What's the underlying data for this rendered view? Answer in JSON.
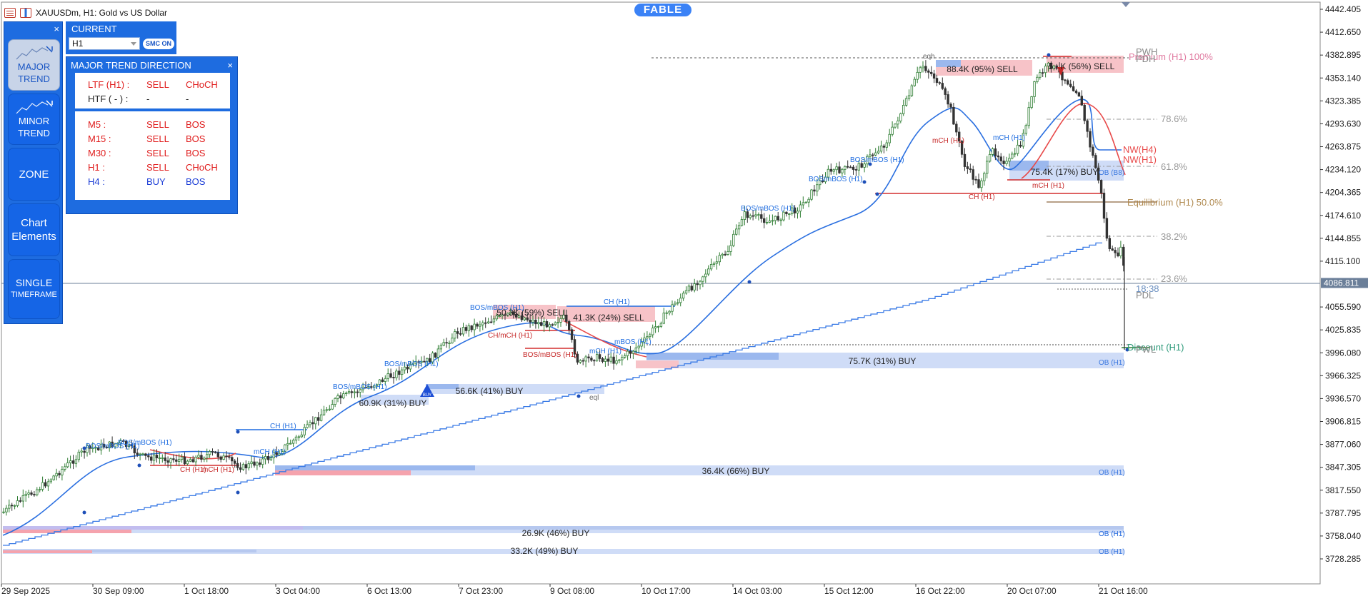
{
  "symbol": {
    "title": "XAUUSDm, H1:  Gold vs US Dollar"
  },
  "brand": {
    "name": "FABLE"
  },
  "left_panel": {
    "close": "×",
    "buttons": [
      {
        "line1": "MAJOR",
        "line2": "TREND",
        "active": true
      },
      {
        "line1": "MINOR",
        "line2": "TREND",
        "active": false
      },
      {
        "line1": "ZONE",
        "line2": "",
        "active": false
      },
      {
        "line1": "Chart",
        "line2": "Elements",
        "active": false
      },
      {
        "line1": "SINGLE",
        "line2": "TIMEFRAME",
        "active": false
      }
    ]
  },
  "current": {
    "label": "CURRENT",
    "timeframe": "H1",
    "smc_button": "SMC ON"
  },
  "trend_panel": {
    "title": "MAJOR TREND DIRECTION",
    "close": "×",
    "top_rows": [
      {
        "tf": "LTF (H1) :",
        "dir": "SELL",
        "type": "CHoCH",
        "color": "red"
      },
      {
        "tf": "HTF ( - ) :",
        "dir": "-",
        "type": "-",
        "color": "dark"
      }
    ],
    "rows": [
      {
        "tf": "M5 :",
        "dir": "SELL",
        "type": "BOS",
        "color": "red"
      },
      {
        "tf": "M15 :",
        "dir": "SELL",
        "type": "BOS",
        "color": "red"
      },
      {
        "tf": "M30 :",
        "dir": "SELL",
        "type": "BOS",
        "color": "red"
      },
      {
        "tf": "H1 :",
        "dir": "SELL",
        "type": "CHoCH",
        "color": "red"
      },
      {
        "tf": "H4 :",
        "dir": "BUY",
        "type": "BOS",
        "color": "blue"
      }
    ]
  },
  "price_axis": {
    "labels": [
      "4442.405",
      "4412.650",
      "4382.895",
      "4353.140",
      "4323.385",
      "4293.630",
      "4263.875",
      "4234.120",
      "4204.365",
      "4174.610",
      "4144.855",
      "4115.100",
      "4086.811",
      "4055.590",
      "4025.835",
      "3996.080",
      "3966.325",
      "3936.570",
      "3906.815",
      "3877.060",
      "3847.305",
      "3817.550",
      "3787.795",
      "3758.040",
      "3728.285"
    ],
    "current_price": "4086.811",
    "countdown": "18:38"
  },
  "time_axis": {
    "labels": [
      "29 Sep 2025",
      "30 Sep 09:00",
      "1 Oct 18:00",
      "3 Oct 04:00",
      "6 Oct 13:00",
      "7 Oct 23:00",
      "9 Oct 08:00",
      "10 Oct 17:00",
      "14 Oct 03:00",
      "15 Oct 12:00",
      "16 Oct 22:00",
      "20 Oct 07:00",
      "21 Oct 16:00"
    ]
  },
  "colors": {
    "bull": "#2e7d32",
    "bear": "#333333",
    "ma_blue": "#2a6fe0",
    "step_blue": "#3b7be6",
    "ma_red": "#e84a4a",
    "ob_fill": "#cfdcf7",
    "ob_dark": "#9bb8ee",
    "sell_fill": "#f7c3c8",
    "panel": "#1e6ce0"
  },
  "annotations": {
    "zones": [
      "75.7K (31%) BUY",
      "36.4K (66%) BUY",
      "26.9K (46%) BUY",
      "33.2K (49%) BUY",
      "56.6K (41%) BUY",
      "60.9K (31%) BUY",
      "75.4K (17%) BUY",
      "88.4K (95%) SELL",
      "41.3K (24%) SELL",
      "50.3K (59%) SELL",
      "5...K (56%) SELL"
    ],
    "ob_tags": [
      "OB (H1)",
      "OB (H1)",
      "OB (H1)",
      "OB (H1)",
      "OB (H1)",
      "OB (B8)"
    ],
    "structure": [
      "BOS/mBOS (H1)",
      "BOS/mBOS (H1)",
      "BOS/mBOS (H1)",
      "BOS/mBOS (H1)",
      "BOS/mBOS (H1)",
      "BOS/mBOS (H1)",
      "BOS/mBOS (H1)",
      "BOS/mBOS (H1)",
      "BOS/mBOS (H1)",
      "CH (H1)",
      "CH (H1)",
      "CH (H1)",
      "CH (H1)",
      "mCH (H1)",
      "mCH (H1)",
      "mCH (H1)",
      "mCH (H1)",
      "mCH (H1)",
      "mCH (H1)",
      "CH/mCH (H1)",
      "mBOS (H1)",
      "BOS/mBOS (H1)",
      "CH (H1)",
      "mCH (H1)"
    ],
    "fib": [
      "Premium (H1) 100%",
      "78.6%",
      "61.8%",
      "Equilibrium (H1) 50.0%",
      "38.2%",
      "23.6%",
      "Discount (H1)"
    ],
    "levels": [
      "PWH",
      "PDH",
      "PDL",
      "PWL",
      "NW(H4)",
      "NW(H1)",
      "eqh",
      "eql",
      "BUY"
    ]
  }
}
